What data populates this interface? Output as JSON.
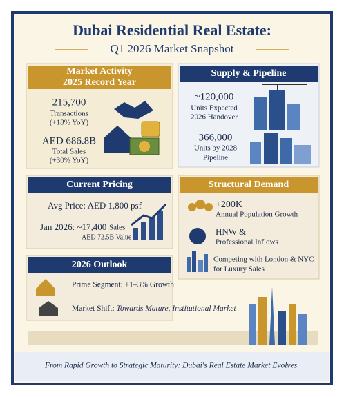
{
  "header": {
    "title": "Dubai Residential Real Estate:",
    "subtitle": "Q1 2026 Market Snapshot"
  },
  "market_activity": {
    "title": "Market Activity",
    "subtitle": "2025 Record Year",
    "stats": [
      {
        "value": "215,700",
        "label": "Transactions",
        "change": "(+18% YoY)"
      },
      {
        "value": "AED 686.8B",
        "label": "Total Sales",
        "change": "(+30% YoY)"
      }
    ]
  },
  "supply_pipeline": {
    "title": "Supply & Pipeline",
    "stats": [
      {
        "value": "~120,000",
        "label": "Units Expected",
        "sublabel": "2026 Handover"
      },
      {
        "value": "366,000",
        "label": "Units by 2028",
        "sublabel": "Pipeline"
      }
    ]
  },
  "current_pricing": {
    "title": "Current Pricing",
    "avg_price": "Avg Price: AED 1,800 psf",
    "jan_sales": "Jan 2026: ~17,400",
    "jan_sales_label": "Sales",
    "jan_value": "AED 72.5B Value"
  },
  "structural_demand": {
    "title": "Structural Demand",
    "items": [
      {
        "value": "+200K",
        "label": "Annual Population Growth"
      },
      {
        "value": "HNW &",
        "label": "Professional Inflows"
      },
      {
        "value": "Competing with London & NYC",
        "label": "for Luxury Sales"
      }
    ]
  },
  "outlook": {
    "title": "2026 Outlook",
    "items": [
      "Prime Segment: +1–3% Growth"
    ],
    "shift_label": "Market Shift:",
    "shift_text": "Towards Mature, Institutional Market"
  },
  "footer": {
    "text": "From Rapid Growth to Strategic Maturity: Dubai's Real Estate Market Evolves."
  }
}
